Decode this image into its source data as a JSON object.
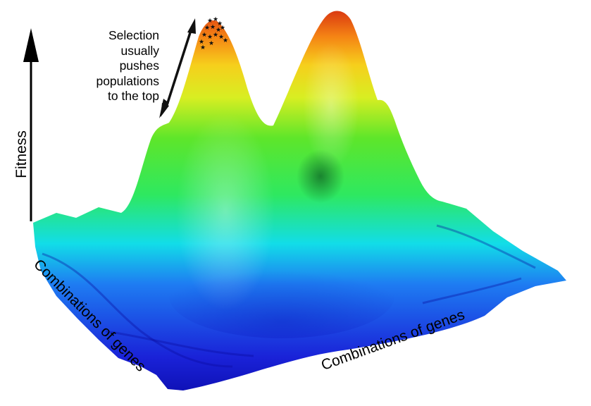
{
  "figure": {
    "y_axis_label": "Fitness",
    "x_axis_left_label": "Combinations of genes",
    "x_axis_right_label": "Combinations of genes",
    "annotation_lines": [
      "Selection",
      "usually",
      "pushes",
      "populations",
      "to the top"
    ],
    "population_marker": "★",
    "colormap": [
      "#1a1ad0",
      "#1e7bf0",
      "#10e0e8",
      "#2ee85a",
      "#b8ee22",
      "#f2e81e",
      "#f58a14",
      "#d01810"
    ],
    "axis_color": "#000000"
  }
}
